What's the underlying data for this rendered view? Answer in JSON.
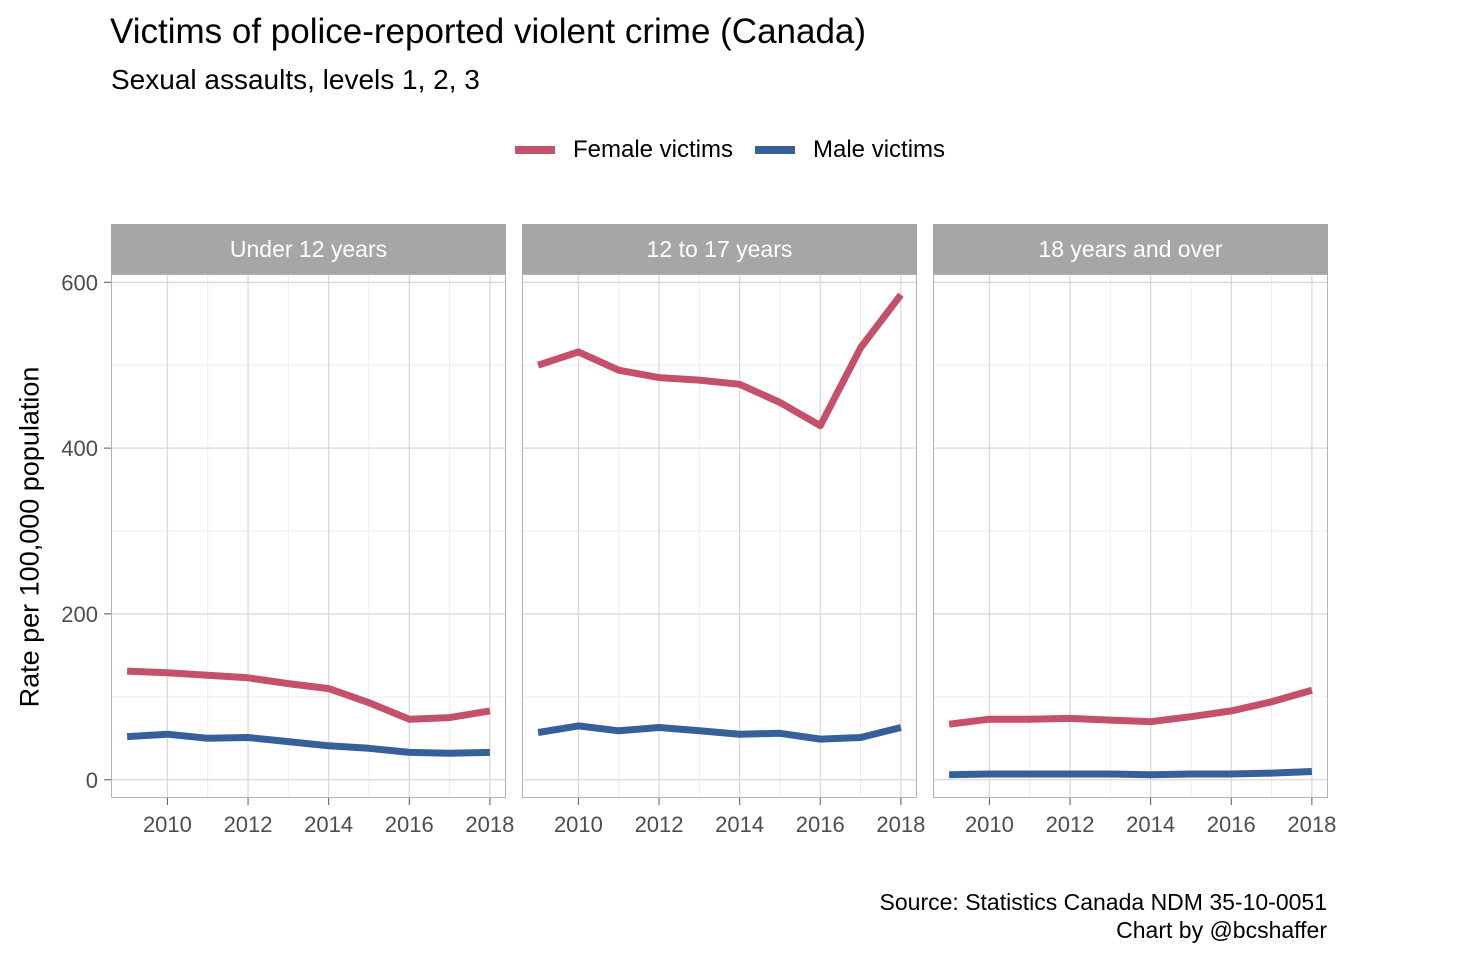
{
  "chart_data": {
    "type": "line",
    "title": "Victims of police-reported violent crime (Canada)",
    "subtitle": "Sexual assaults, levels 1, 2, 3",
    "ylabel": "Rate per 100,000 population",
    "xlabel": "",
    "x": [
      2009,
      2010,
      2011,
      2012,
      2013,
      2014,
      2015,
      2016,
      2017,
      2018
    ],
    "xticks": [
      2010,
      2012,
      2014,
      2016,
      2018
    ],
    "xlim": [
      2008.6,
      2018.4
    ],
    "yticks": [
      0,
      200,
      400,
      600
    ],
    "ylim": [
      -22,
      610
    ],
    "grid": true,
    "legend_position": "top",
    "legend": [
      {
        "name": "Female victims",
        "color": "#c4506a"
      },
      {
        "name": "Male victims",
        "color": "#36609a"
      }
    ],
    "panels": [
      {
        "label": "Under 12 years",
        "series": [
          {
            "name": "Female victims",
            "values": [
              131,
              129,
              126,
              123,
              116,
              110,
              93,
              73,
              75,
              83
            ]
          },
          {
            "name": "Male victims",
            "values": [
              52,
              55,
              50,
              51,
              46,
              41,
              38,
              33,
              32,
              33
            ]
          }
        ]
      },
      {
        "label": "12 to 17 years",
        "series": [
          {
            "name": "Female victims",
            "values": [
              500,
              516,
              494,
              485,
              482,
              477,
              455,
              427,
              521,
              585
            ]
          },
          {
            "name": "Male victims",
            "values": [
              57,
              65,
              59,
              63,
              59,
              55,
              56,
              49,
              51,
              63
            ]
          }
        ]
      },
      {
        "label": "18 years and over",
        "series": [
          {
            "name": "Female victims",
            "values": [
              67,
              73,
              73,
              74,
              72,
              70,
              76,
              83,
              94,
              108
            ]
          },
          {
            "name": "Male victims",
            "values": [
              6,
              7,
              7,
              7,
              7,
              6,
              7,
              7,
              8,
              10
            ]
          }
        ]
      }
    ],
    "caption": [
      "Source: Statistics Canada NDM 35-10-0051",
      "Chart by @bcshaffer"
    ]
  }
}
